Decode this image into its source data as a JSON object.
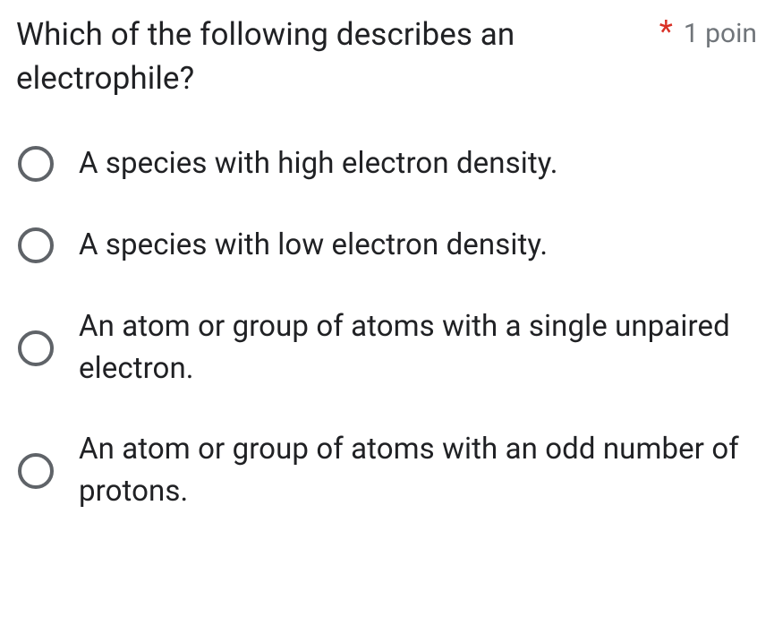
{
  "question": {
    "text": "Which of the following describes an electrophile?",
    "required_marker": "*",
    "points_label": "1 poin"
  },
  "options": [
    {
      "label": "A species with high electron density."
    },
    {
      "label": "A species with low electron density."
    },
    {
      "label": "An atom or group of atoms with a single unpaired electron."
    },
    {
      "label": "An atom or group of atoms with an odd number of protons."
    }
  ],
  "colors": {
    "text": "#202124",
    "muted": "#70757a",
    "required": "#d93025",
    "radio_border": "#5f6368",
    "background": "#ffffff"
  }
}
